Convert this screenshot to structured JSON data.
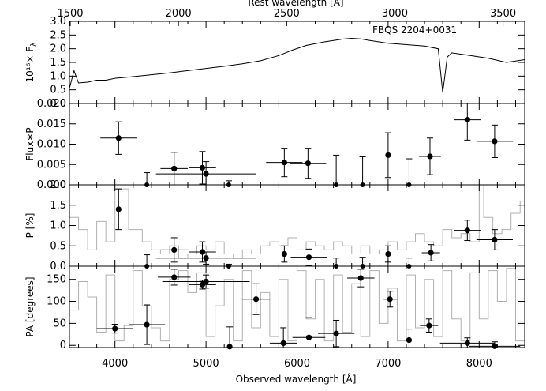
{
  "chart_data": {
    "type": "scatter",
    "xlabel": "Observed wavelength [Å]",
    "x2label": "Rest wavelength [Å]",
    "x2_offset_per_obs_over": 2.63,
    "xlim": [
      3500,
      8500
    ],
    "xticks": [
      4000,
      5000,
      6000,
      7000,
      8000
    ],
    "x2lim": [
      1500,
      3600
    ],
    "x2ticks": [
      1500,
      2000,
      2500,
      3000,
      3500
    ],
    "object_label": "FBQS 2204+0031",
    "panels": [
      {
        "id": "flux",
        "ylabel": "10¹⁶× F",
        "ylabel_sub": "λ",
        "ylim": [
          0,
          3.0
        ],
        "yticks": [
          0,
          0.5,
          1.0,
          1.5,
          2.0,
          2.5,
          3.0
        ],
        "ytick_labels": [
          "0.0",
          "0.5",
          "1.0",
          "1.5",
          "2.0",
          "2.5",
          "3.0"
        ],
        "spectrum": [
          [
            3500,
            0.55
          ],
          [
            3550,
            1.2
          ],
          [
            3600,
            0.75
          ],
          [
            3700,
            0.78
          ],
          [
            3800,
            0.85
          ],
          [
            3900,
            0.85
          ],
          [
            4000,
            0.92
          ],
          [
            4200,
            0.98
          ],
          [
            4400,
            1.05
          ],
          [
            4600,
            1.12
          ],
          [
            4800,
            1.2
          ],
          [
            5000,
            1.28
          ],
          [
            5200,
            1.36
          ],
          [
            5400,
            1.45
          ],
          [
            5600,
            1.56
          ],
          [
            5800,
            1.75
          ],
          [
            5950,
            1.95
          ],
          [
            6100,
            2.12
          ],
          [
            6300,
            2.25
          ],
          [
            6500,
            2.35
          ],
          [
            6600,
            2.38
          ],
          [
            6700,
            2.36
          ],
          [
            6800,
            2.3
          ],
          [
            6900,
            2.25
          ],
          [
            7000,
            2.2
          ],
          [
            7200,
            2.15
          ],
          [
            7400,
            2.1
          ],
          [
            7550,
            2.0
          ],
          [
            7600,
            0.4
          ],
          [
            7650,
            1.7
          ],
          [
            7700,
            1.85
          ],
          [
            7900,
            1.75
          ],
          [
            8100,
            1.65
          ],
          [
            8300,
            1.5
          ],
          [
            8500,
            1.6
          ]
        ]
      },
      {
        "id": "polflux",
        "ylabel": "Flux∗P",
        "ylim": [
          0,
          0.02
        ],
        "yticks": [
          0,
          0.005,
          0.01,
          0.015,
          0.02
        ],
        "ytick_labels": [
          "0.000",
          "0.005",
          "0.010",
          "0.015",
          "0.020"
        ],
        "points": [
          {
            "x": 4040,
            "xerr": 200,
            "y": 0.0115,
            "yerr": 0.004
          },
          {
            "x": 4650,
            "xerr": 150,
            "y": 0.004,
            "yerr": 0.004
          },
          {
            "x": 4960,
            "xerr": 150,
            "y": 0.0042,
            "yerr": 0.004
          },
          {
            "x": 5000,
            "xerr": 550,
            "y": 0.0027,
            "yerr": 0.003
          },
          {
            "x": 5860,
            "xerr": 200,
            "y": 0.0055,
            "yerr": 0.0035
          },
          {
            "x": 6120,
            "xerr": 200,
            "y": 0.0053,
            "yerr": 0.0037
          },
          {
            "x": 7000,
            "xerr": 0,
            "y": 0.0073,
            "yerr": 0.0055
          },
          {
            "x": 7460,
            "xerr": 120,
            "y": 0.007,
            "yerr": 0.0045
          },
          {
            "x": 7870,
            "xerr": 150,
            "y": 0.016,
            "yerr": 0.005
          },
          {
            "x": 8170,
            "xerr": 200,
            "y": 0.0107,
            "yerr": 0.004
          }
        ],
        "upper_limits": [
          {
            "x": 4350,
            "y_top": 0.003
          },
          {
            "x": 5250,
            "y_top": 0.001
          },
          {
            "x": 6430,
            "y_top": 0.0073
          },
          {
            "x": 6720,
            "y_top": 0.0069
          },
          {
            "x": 7230,
            "y_top": 0.0064
          }
        ]
      },
      {
        "id": "pol",
        "ylabel": "P [%]",
        "ylim": [
          0,
          2.0
        ],
        "yticks": [
          0,
          0.5,
          1.0,
          1.5,
          2.0
        ],
        "ytick_labels": [
          "0.0",
          "0.5",
          "1.0",
          "1.5",
          "2.0"
        ],
        "points": [
          {
            "x": 4040,
            "xerr": 0,
            "y": 1.4,
            "yerr": 0.5
          },
          {
            "x": 4650,
            "xerr": 150,
            "y": 0.4,
            "yerr": 0.3
          },
          {
            "x": 4960,
            "xerr": 150,
            "y": 0.35,
            "yerr": 0.25
          },
          {
            "x": 5000,
            "xerr": 550,
            "y": 0.2,
            "yerr": 0.15
          },
          {
            "x": 5860,
            "xerr": 200,
            "y": 0.3,
            "yerr": 0.2
          },
          {
            "x": 6130,
            "xerr": 200,
            "y": 0.22,
            "yerr": 0.2
          },
          {
            "x": 7000,
            "xerr": 100,
            "y": 0.3,
            "yerr": 0.2
          },
          {
            "x": 7470,
            "xerr": 100,
            "y": 0.33,
            "yerr": 0.2
          },
          {
            "x": 7870,
            "xerr": 150,
            "y": 0.88,
            "yerr": 0.25
          },
          {
            "x": 8170,
            "xerr": 200,
            "y": 0.65,
            "yerr": 0.25
          }
        ],
        "upper_limits": [
          {
            "x": 4350,
            "y_top": 0.28
          },
          {
            "x": 5250,
            "y_top": 0.05
          },
          {
            "x": 6430,
            "y_top": 0.2
          },
          {
            "x": 6720,
            "y_top": 0.22
          },
          {
            "x": 7230,
            "y_top": 0.2
          }
        ],
        "background_step": [
          [
            3500,
            1.2
          ],
          [
            3600,
            0.9
          ],
          [
            3700,
            0.4
          ],
          [
            3800,
            1.1
          ],
          [
            3900,
            0.6
          ],
          [
            4000,
            1.9
          ],
          [
            4150,
            0.9
          ],
          [
            4300,
            0.6
          ],
          [
            4400,
            0.4
          ],
          [
            4500,
            0.3
          ],
          [
            4600,
            0.5
          ],
          [
            4700,
            0.2
          ],
          [
            4800,
            0.3
          ],
          [
            4900,
            0.5
          ],
          [
            5000,
            0.4
          ],
          [
            5100,
            0.6
          ],
          [
            5200,
            0.3
          ],
          [
            5300,
            0.2
          ],
          [
            5400,
            0.4
          ],
          [
            5500,
            0.3
          ],
          [
            5600,
            0.5
          ],
          [
            5700,
            0.6
          ],
          [
            5800,
            0.5
          ],
          [
            5900,
            0.7
          ],
          [
            6000,
            0.4
          ],
          [
            6100,
            0.6
          ],
          [
            6200,
            0.5
          ],
          [
            6300,
            0.4
          ],
          [
            6400,
            0.6
          ],
          [
            6500,
            0.5
          ],
          [
            6600,
            0.3
          ],
          [
            6700,
            0.5
          ],
          [
            6800,
            0.3
          ],
          [
            6900,
            0.4
          ],
          [
            7000,
            0.6
          ],
          [
            7100,
            0.4
          ],
          [
            7200,
            0.6
          ],
          [
            7300,
            0.8
          ],
          [
            7400,
            0.6
          ],
          [
            7500,
            0.5
          ],
          [
            7600,
            0.9
          ],
          [
            7700,
            0.7
          ],
          [
            7800,
            0.8
          ],
          [
            7900,
            0.6
          ],
          [
            8000,
            2.0
          ],
          [
            8050,
            1.2
          ],
          [
            8150,
            0.8
          ],
          [
            8250,
            0.9
          ],
          [
            8350,
            1.3
          ],
          [
            8450,
            1.6
          ]
        ]
      },
      {
        "id": "pa",
        "ylabel": "PA [degrees]",
        "ylim": [
          -5,
          180
        ],
        "yticks": [
          0,
          50,
          100,
          150
        ],
        "ytick_labels": [
          "0",
          "50",
          "100",
          "150"
        ],
        "points": [
          {
            "x": 4000,
            "xerr": 200,
            "y": 38,
            "yerr": 10
          },
          {
            "x": 4350,
            "xerr": 200,
            "y": 47,
            "yerr": 45
          },
          {
            "x": 4650,
            "xerr": 180,
            "y": 155,
            "yerr": 18
          },
          {
            "x": 4960,
            "xerr": 150,
            "y": 138,
            "yerr": 10
          },
          {
            "x": 5000,
            "xerr": 480,
            "y": 145,
            "yerr": 15
          },
          {
            "x": 5260,
            "xerr": 0,
            "y": -3,
            "yerr": 45
          },
          {
            "x": 5550,
            "xerr": 150,
            "y": 105,
            "yerr": 35
          },
          {
            "x": 5850,
            "xerr": 150,
            "y": 5,
            "yerr": 35
          },
          {
            "x": 6130,
            "xerr": 180,
            "y": 18,
            "yerr": 45
          },
          {
            "x": 6430,
            "xerr": 200,
            "y": 27,
            "yerr": 30
          },
          {
            "x": 6700,
            "xerr": 150,
            "y": 153,
            "yerr": 20
          },
          {
            "x": 7020,
            "xerr": 80,
            "y": 105,
            "yerr": 18
          },
          {
            "x": 7230,
            "xerr": 150,
            "y": 12,
            "yerr": 25
          },
          {
            "x": 7450,
            "xerr": 100,
            "y": 45,
            "yerr": 15
          },
          {
            "x": 7870,
            "xerr": 300,
            "y": 5,
            "yerr": 12
          },
          {
            "x": 8170,
            "xerr": 280,
            "y": -2,
            "yerr": 10
          }
        ],
        "background_step": [
          [
            3500,
            80
          ],
          [
            3600,
            145
          ],
          [
            3700,
            110
          ],
          [
            3800,
            30
          ],
          [
            3900,
            160
          ],
          [
            4000,
            10
          ],
          [
            4100,
            45
          ],
          [
            4200,
            170
          ],
          [
            4300,
            90
          ],
          [
            4400,
            40
          ],
          [
            4500,
            10
          ],
          [
            4600,
            150
          ],
          [
            4700,
            170
          ],
          [
            4800,
            120
          ],
          [
            4900,
            165
          ],
          [
            5000,
            20
          ],
          [
            5100,
            90
          ],
          [
            5200,
            150
          ],
          [
            5300,
            10
          ],
          [
            5400,
            170
          ],
          [
            5500,
            40
          ],
          [
            5600,
            120
          ],
          [
            5700,
            20
          ],
          [
            5800,
            150
          ],
          [
            5900,
            10
          ],
          [
            6000,
            170
          ],
          [
            6100,
            60
          ],
          [
            6200,
            150
          ],
          [
            6300,
            10
          ],
          [
            6400,
            160
          ],
          [
            6500,
            30
          ],
          [
            6600,
            140
          ],
          [
            6700,
            20
          ],
          [
            6800,
            170
          ],
          [
            6900,
            50
          ],
          [
            7000,
            130
          ],
          [
            7100,
            10
          ],
          [
            7200,
            160
          ],
          [
            7300,
            40
          ],
          [
            7400,
            150
          ],
          [
            7500,
            20
          ],
          [
            7600,
            170
          ],
          [
            7700,
            60
          ],
          [
            7800,
            10
          ],
          [
            7900,
            165
          ],
          [
            8000,
            60
          ],
          [
            8100,
            170
          ],
          [
            8200,
            100
          ],
          [
            8300,
            175
          ],
          [
            8400,
            10
          ],
          [
            8500,
            150
          ]
        ]
      }
    ]
  }
}
